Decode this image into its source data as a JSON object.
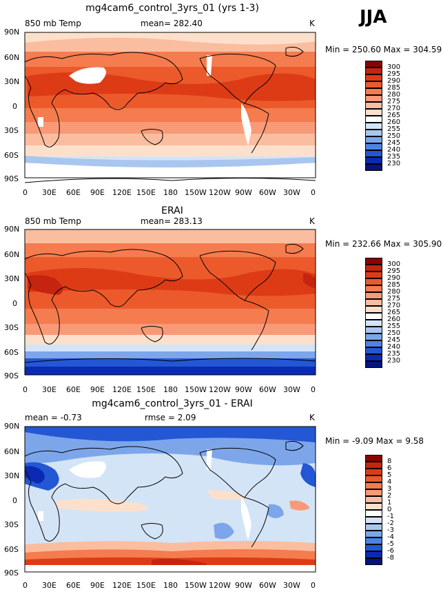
{
  "season": "JJA",
  "panels": [
    {
      "title": "mg4cam6_control_3yrs_01 (yrs 1-3)",
      "left_label": "850 mb Temp",
      "center_label": "mean= 282.40",
      "right_label": "K",
      "minmax": "Min = 250.60 Max = 304.59",
      "levels": [
        "300",
        "295",
        "290",
        "285",
        "280",
        "275",
        "270",
        "265",
        "260",
        "255",
        "250",
        "245",
        "240",
        "235",
        "230"
      ]
    },
    {
      "title": "ERAI",
      "left_label": "850 mb Temp",
      "center_label": "mean= 283.13",
      "right_label": "K",
      "minmax": "Min = 232.66 Max = 305.90",
      "levels": [
        "300",
        "295",
        "290",
        "285",
        "280",
        "275",
        "270",
        "265",
        "260",
        "255",
        "250",
        "245",
        "240",
        "235",
        "230"
      ]
    },
    {
      "title": "mg4cam6_control_3yrs_01 - ERAI",
      "left_label": "mean =  -0.73",
      "center_label": "rmse =   2.09",
      "right_label": "K",
      "minmax": "Min =  -9.09 Max =   9.58",
      "levels": [
        "8",
        "6",
        "5",
        "4",
        "3",
        "2",
        "1",
        "0",
        "-1",
        "-2",
        "-3",
        "-4",
        "-5",
        "-6",
        "-8"
      ]
    }
  ],
  "lat_ticks": [
    "90N",
    "60N",
    "30N",
    "0",
    "30S",
    "60S",
    "90S"
  ],
  "lon_ticks": [
    "0",
    "30E",
    "60E",
    "90E",
    "120E",
    "150E",
    "180",
    "150W",
    "120W",
    "90W",
    "60W",
    "30W",
    "0"
  ],
  "colors": {
    "temp_scale": [
      "#8b0000",
      "#c5250e",
      "#dd3b16",
      "#ec5a2c",
      "#f47c4f",
      "#f89a78",
      "#fbbd9f",
      "#fde0cc",
      "#ffffff",
      "#d4e4f7",
      "#a9c6f0",
      "#7da6ea",
      "#4f83e2",
      "#2457d4",
      "#0b2ab3",
      "#06137a"
    ],
    "diff_scale": [
      "#8b0000",
      "#c5250e",
      "#dd3b16",
      "#ec5a2c",
      "#f47c4f",
      "#f89a78",
      "#fbbd9f",
      "#fde0cc",
      "#ffffff",
      "#d4e4f7",
      "#a9c6f0",
      "#7da6ea",
      "#4f83e2",
      "#2457d4",
      "#0b2ab3",
      "#06137a"
    ]
  }
}
